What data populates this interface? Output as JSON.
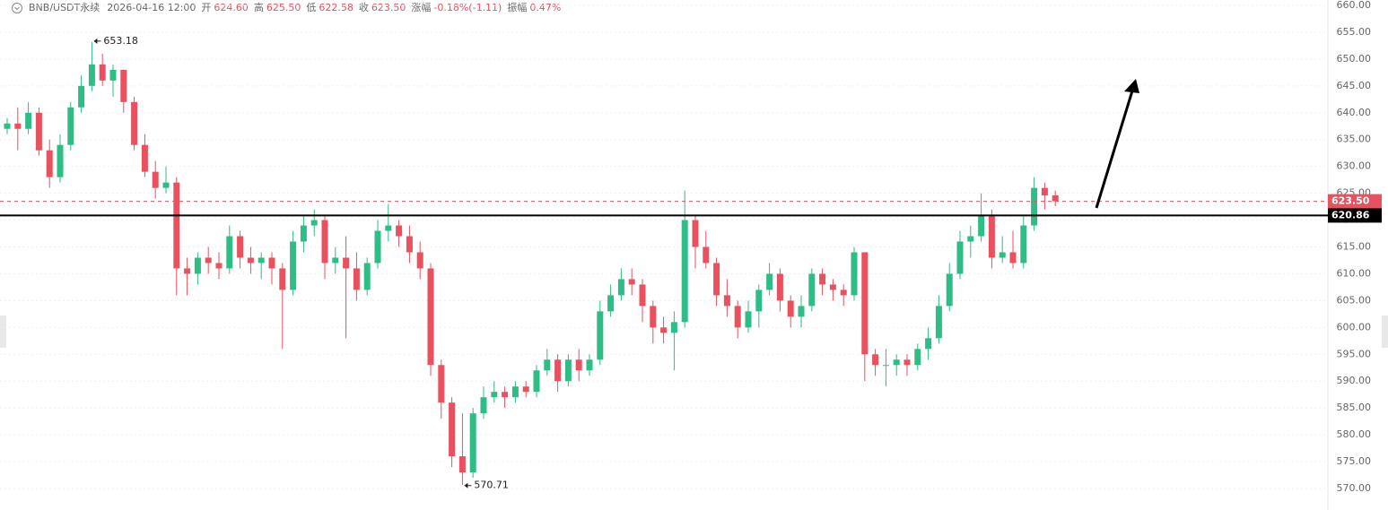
{
  "header": {
    "symbol": "BNB/USDT永续",
    "time": "2026-04-16 12:00",
    "fields": [
      {
        "label": "开",
        "value": "624.60"
      },
      {
        "label": "高",
        "value": "625.50"
      },
      {
        "label": "低",
        "value": "622.58"
      },
      {
        "label": "收",
        "value": "623.50"
      },
      {
        "label": "涨幅",
        "value": "-0.18%(-1.11)"
      },
      {
        "label": "振幅",
        "value": "0.47%"
      }
    ]
  },
  "chart_data": {
    "type": "candlestick",
    "up_color": "#2ebd85",
    "down_color": "#e8515d",
    "ylim": [
      568,
      661
    ],
    "yticks": [
      {
        "value": 570,
        "label": "570.00"
      },
      {
        "value": 575,
        "label": "575.00"
      },
      {
        "value": 580,
        "label": "580.00"
      },
      {
        "value": 585,
        "label": "585.00"
      },
      {
        "value": 590,
        "label": "590.00"
      },
      {
        "value": 595,
        "label": "595.00"
      },
      {
        "value": 600,
        "label": "600.00"
      },
      {
        "value": 605,
        "label": "605.00"
      },
      {
        "value": 610,
        "label": "610.00"
      },
      {
        "value": 615,
        "label": "615.00"
      },
      {
        "value": 620,
        "label": "620.00"
      },
      {
        "value": 625,
        "label": "625.00"
      },
      {
        "value": 630,
        "label": "630.00"
      },
      {
        "value": 635,
        "label": "635.00"
      },
      {
        "value": 640,
        "label": "640.00"
      },
      {
        "value": 645,
        "label": "645.00"
      },
      {
        "value": 650,
        "label": "650.00"
      },
      {
        "value": 655,
        "label": "655.00"
      },
      {
        "value": 660,
        "label": "660.00"
      }
    ],
    "grid": true,
    "high_label": {
      "index": 8,
      "value": 653.18
    },
    "low_label": {
      "index": 43,
      "value": 570.71
    },
    "level": 620.86,
    "last_price": {
      "value": 623.5,
      "label": "623.50"
    },
    "candles": [
      [
        637,
        639,
        636,
        638
      ],
      [
        638,
        641,
        633,
        637
      ],
      [
        637,
        642,
        636,
        640
      ],
      [
        640,
        641,
        632,
        633
      ],
      [
        633,
        635,
        626,
        628
      ],
      [
        628,
        636,
        627,
        634
      ],
      [
        634,
        642,
        633,
        641
      ],
      [
        641,
        647,
        640,
        645
      ],
      [
        645,
        653.18,
        644,
        649
      ],
      [
        649,
        651,
        645,
        646
      ],
      [
        646,
        649,
        643,
        648
      ],
      [
        648,
        648,
        640,
        642
      ],
      [
        642,
        643,
        633,
        634
      ],
      [
        634,
        636,
        628,
        629
      ],
      [
        629,
        631,
        624,
        626
      ],
      [
        626,
        630,
        625,
        627
      ],
      [
        627,
        628,
        606,
        611
      ],
      [
        611,
        613,
        606,
        610
      ],
      [
        610,
        614,
        608,
        613
      ],
      [
        613,
        615,
        610,
        612
      ],
      [
        612,
        614,
        609,
        611
      ],
      [
        611,
        619,
        610,
        617
      ],
      [
        617,
        618,
        611,
        613
      ],
      [
        613,
        615,
        610,
        612
      ],
      [
        612,
        614,
        609,
        613
      ],
      [
        613,
        614,
        608,
        611
      ],
      [
        611,
        612,
        596,
        607
      ],
      [
        607,
        618,
        606,
        616
      ],
      [
        616,
        621,
        614,
        619
      ],
      [
        619,
        622,
        617,
        620
      ],
      [
        620,
        621,
        609,
        612
      ],
      [
        612,
        615,
        610,
        613
      ],
      [
        613,
        617,
        598,
        611
      ],
      [
        611,
        614,
        605,
        607
      ],
      [
        607,
        613,
        606,
        612
      ],
      [
        612,
        620,
        611,
        618
      ],
      [
        618,
        623,
        616,
        619
      ],
      [
        619,
        620,
        615,
        617
      ],
      [
        617,
        619,
        612,
        614
      ],
      [
        614,
        616,
        609,
        611
      ],
      [
        611,
        612,
        591,
        593
      ],
      [
        593,
        594,
        583,
        586
      ],
      [
        586,
        587,
        574,
        576
      ],
      [
        576,
        584,
        570.71,
        573
      ],
      [
        573,
        585,
        572,
        584
      ],
      [
        584,
        589,
        583,
        587
      ],
      [
        587,
        590,
        586,
        588
      ],
      [
        588,
        589,
        585,
        587
      ],
      [
        587,
        590,
        586,
        589
      ],
      [
        589,
        590,
        587,
        588
      ],
      [
        588,
        593,
        587,
        592
      ],
      [
        592,
        596,
        591,
        594
      ],
      [
        594,
        595,
        588,
        590
      ],
      [
        590,
        595,
        589,
        594
      ],
      [
        594,
        596,
        590,
        592
      ],
      [
        592,
        595,
        591,
        594
      ],
      [
        594,
        605,
        593,
        603
      ],
      [
        603,
        608,
        602,
        606
      ],
      [
        606,
        611,
        605,
        609
      ],
      [
        609,
        611,
        606,
        608
      ],
      [
        608,
        609,
        601,
        604
      ],
      [
        604,
        605,
        597,
        600
      ],
      [
        600,
        602,
        597,
        599
      ],
      [
        599,
        603,
        592,
        601
      ],
      [
        601,
        625.5,
        600,
        620
      ],
      [
        620,
        621,
        611,
        615
      ],
      [
        615,
        618,
        611,
        612
      ],
      [
        612,
        613,
        604,
        606
      ],
      [
        606,
        609,
        602,
        604
      ],
      [
        604,
        605,
        598,
        600
      ],
      [
        600,
        605,
        599,
        603
      ],
      [
        603,
        608,
        600,
        607
      ],
      [
        607,
        612,
        606,
        610
      ],
      [
        610,
        611,
        603,
        605
      ],
      [
        605,
        606,
        600,
        602
      ],
      [
        602,
        606,
        600,
        604
      ],
      [
        604,
        611,
        603,
        610
      ],
      [
        610,
        611,
        606,
        608
      ],
      [
        608,
        609,
        605,
        607
      ],
      [
        607,
        608,
        604,
        606
      ],
      [
        606,
        615,
        605,
        614
      ],
      [
        614,
        614,
        590,
        595
      ],
      [
        595,
        596,
        591,
        593
      ],
      [
        593,
        596,
        589,
        593
      ],
      [
        593,
        595,
        591,
        594
      ],
      [
        594,
        595,
        591,
        593
      ],
      [
        593,
        597,
        592,
        596
      ],
      [
        596,
        600,
        594,
        598
      ],
      [
        598,
        606,
        597,
        604
      ],
      [
        604,
        612,
        603,
        610
      ],
      [
        610,
        618,
        609,
        616
      ],
      [
        616,
        619,
        613,
        617
      ],
      [
        617,
        625,
        616,
        621
      ],
      [
        621,
        622,
        611,
        613
      ],
      [
        613,
        617,
        612,
        614
      ],
      [
        614,
        618,
        611,
        612
      ],
      [
        612,
        621,
        611,
        619
      ],
      [
        619,
        628,
        618,
        626
      ],
      [
        626,
        627,
        622,
        624.6
      ],
      [
        624.6,
        625.5,
        622.58,
        623.5
      ]
    ]
  }
}
